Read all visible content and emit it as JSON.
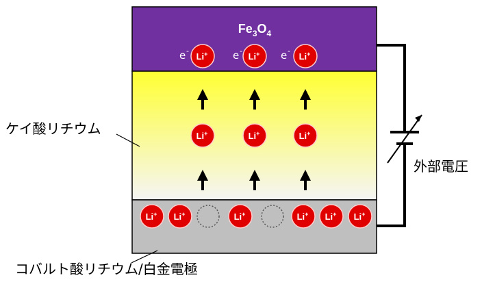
{
  "fe3o4": {
    "base1": "Fe",
    "sub1": "3",
    "base2": "O",
    "sub2": "4"
  },
  "li_ion": {
    "symbol": "Li",
    "charge": "+"
  },
  "electron": {
    "symbol": "e",
    "charge": "-"
  },
  "labels": {
    "electrolyte": "ケイ酸リチウム",
    "voltage": "外部電圧",
    "electrode": "コバルト酸リチウム/白金電極"
  },
  "colors": {
    "fe3o4_layer": "#7030a0",
    "electrolyte_top": "#ffff33",
    "electrolyte_bottom": "#f5f5f5",
    "electrode_layer": "#bfbfbf",
    "li_ion": "#e00000",
    "li_ion_border": "#ffcccc",
    "outline": "#000000"
  },
  "icons": {
    "arrow": "up-arrow-icon",
    "vacancy": "dotted-circle-vacancy-icon",
    "battery": "variable-voltage-source-icon"
  }
}
